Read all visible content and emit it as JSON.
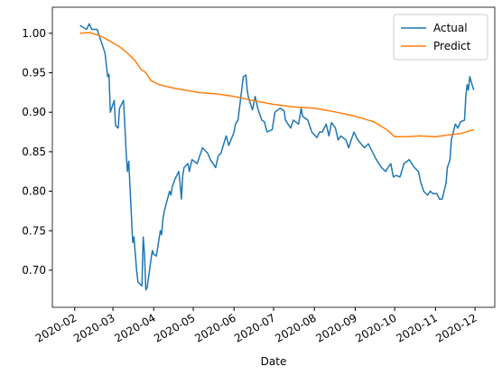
{
  "chart_data": {
    "type": "line",
    "xlabel": "Date",
    "xlim": [
      "2020-01-15",
      "2020-12-16"
    ],
    "xticks": [
      "2020-02",
      "2020-03",
      "2020-04",
      "2020-05",
      "2020-06",
      "2020-07",
      "2020-08",
      "2020-09",
      "2020-10",
      "2020-11",
      "2020-12"
    ],
    "ylim": [
      0.653,
      1.033
    ],
    "yticks": [
      {
        "value": 0.7,
        "label": "0.70"
      },
      {
        "value": 0.75,
        "label": "0.75"
      },
      {
        "value": 0.8,
        "label": "0.80"
      },
      {
        "value": 0.85,
        "label": "0.85"
      },
      {
        "value": 0.9,
        "label": "0.90"
      },
      {
        "value": 0.95,
        "label": "0.95"
      },
      {
        "value": 1.0,
        "label": "1.00"
      }
    ],
    "grid": false,
    "legend": "upper right",
    "series": [
      {
        "name": "Actual",
        "color": "#1f77b4",
        "x": [
          "2020-02-05",
          "2020-02-10",
          "2020-02-12",
          "2020-02-14",
          "2020-02-18",
          "2020-02-20",
          "2020-02-24",
          "2020-02-26",
          "2020-02-27",
          "2020-02-28",
          "2020-03-02",
          "2020-03-03",
          "2020-03-05",
          "2020-03-06",
          "2020-03-09",
          "2020-03-10",
          "2020-03-11",
          "2020-03-12",
          "2020-03-13",
          "2020-03-16",
          "2020-03-17",
          "2020-03-18",
          "2020-03-19",
          "2020-03-20",
          "2020-03-23",
          "2020-03-24",
          "2020-03-25",
          "2020-03-26",
          "2020-03-27",
          "2020-03-30",
          "2020-03-31",
          "2020-04-01",
          "2020-04-03",
          "2020-04-06",
          "2020-04-07",
          "2020-04-08",
          "2020-04-09",
          "2020-04-13",
          "2020-04-14",
          "2020-04-15",
          "2020-04-17",
          "2020-04-20",
          "2020-04-21",
          "2020-04-22",
          "2020-04-23",
          "2020-04-24",
          "2020-04-27",
          "2020-04-28",
          "2020-04-30",
          "2020-05-04",
          "2020-05-06",
          "2020-05-08",
          "2020-05-12",
          "2020-05-14",
          "2020-05-18",
          "2020-05-20",
          "2020-05-22",
          "2020-05-26",
          "2020-05-28",
          "2020-06-01",
          "2020-06-02",
          "2020-06-04",
          "2020-06-08",
          "2020-06-10",
          "2020-06-11",
          "2020-06-12",
          "2020-06-15",
          "2020-06-17",
          "2020-06-19",
          "2020-06-22",
          "2020-06-24",
          "2020-06-26",
          "2020-06-30",
          "2020-07-02",
          "2020-07-06",
          "2020-07-09",
          "2020-07-10",
          "2020-07-14",
          "2020-07-16",
          "2020-07-20",
          "2020-07-22",
          "2020-07-23",
          "2020-07-27",
          "2020-07-30",
          "2020-08-03",
          "2020-08-05",
          "2020-08-07",
          "2020-08-10",
          "2020-08-12",
          "2020-08-14",
          "2020-08-17",
          "2020-08-19",
          "2020-08-21",
          "2020-08-25",
          "2020-08-27",
          "2020-08-31",
          "2020-09-03",
          "2020-09-08",
          "2020-09-11",
          "2020-09-14",
          "2020-09-17",
          "2020-09-21",
          "2020-09-24",
          "2020-09-28",
          "2020-09-30",
          "2020-10-02",
          "2020-10-05",
          "2020-10-08",
          "2020-10-12",
          "2020-10-14",
          "2020-10-16",
          "2020-10-19",
          "2020-10-21",
          "2020-10-23",
          "2020-10-26",
          "2020-10-28",
          "2020-10-30",
          "2020-11-02",
          "2020-11-04",
          "2020-11-06",
          "2020-11-09",
          "2020-11-10",
          "2020-11-12",
          "2020-11-13",
          "2020-11-16",
          "2020-11-18",
          "2020-11-20",
          "2020-11-23",
          "2020-11-24",
          "2020-11-25",
          "2020-11-26",
          "2020-11-27",
          "2020-11-30"
        ],
        "values": [
          1.01,
          1.005,
          1.012,
          1.005,
          1.005,
          0.995,
          0.975,
          0.945,
          0.948,
          0.9,
          0.915,
          0.883,
          0.88,
          0.905,
          0.915,
          0.885,
          0.85,
          0.825,
          0.838,
          0.735,
          0.742,
          0.72,
          0.7,
          0.685,
          0.68,
          0.742,
          0.72,
          0.675,
          0.678,
          0.715,
          0.725,
          0.72,
          0.718,
          0.75,
          0.745,
          0.765,
          0.775,
          0.8,
          0.795,
          0.805,
          0.815,
          0.825,
          0.81,
          0.79,
          0.82,
          0.83,
          0.835,
          0.825,
          0.84,
          0.835,
          0.845,
          0.855,
          0.848,
          0.84,
          0.83,
          0.845,
          0.848,
          0.87,
          0.858,
          0.875,
          0.885,
          0.89,
          0.945,
          0.947,
          0.928,
          0.918,
          0.903,
          0.92,
          0.905,
          0.89,
          0.888,
          0.875,
          0.878,
          0.9,
          0.905,
          0.902,
          0.89,
          0.88,
          0.89,
          0.885,
          0.905,
          0.895,
          0.89,
          0.875,
          0.868,
          0.875,
          0.875,
          0.885,
          0.87,
          0.887,
          0.88,
          0.865,
          0.87,
          0.865,
          0.855,
          0.875,
          0.865,
          0.855,
          0.86,
          0.85,
          0.84,
          0.83,
          0.825,
          0.835,
          0.818,
          0.82,
          0.818,
          0.835,
          0.84,
          0.835,
          0.83,
          0.825,
          0.81,
          0.8,
          0.795,
          0.8,
          0.797,
          0.797,
          0.79,
          0.79,
          0.81,
          0.83,
          0.84,
          0.865,
          0.885,
          0.88,
          0.888,
          0.89,
          0.92,
          0.935,
          0.928,
          0.945,
          0.928
        ]
      },
      {
        "name": "Predict",
        "color": "#ff7f0e",
        "x": [
          "2020-02-05",
          "2020-02-12",
          "2020-02-20",
          "2020-02-28",
          "2020-03-06",
          "2020-03-12",
          "2020-03-18",
          "2020-03-22",
          "2020-03-26",
          "2020-03-30",
          "2020-04-05",
          "2020-04-15",
          "2020-04-25",
          "2020-05-05",
          "2020-05-20",
          "2020-06-01",
          "2020-06-15",
          "2020-07-01",
          "2020-07-15",
          "2020-08-01",
          "2020-08-15",
          "2020-09-01",
          "2020-09-15",
          "2020-09-25",
          "2020-10-01",
          "2020-10-10",
          "2020-10-20",
          "2020-11-01",
          "2020-11-10",
          "2020-11-20",
          "2020-11-30"
        ],
        "values": [
          1.0,
          1.001,
          0.997,
          0.99,
          0.983,
          0.975,
          0.965,
          0.955,
          0.95,
          0.94,
          0.935,
          0.931,
          0.928,
          0.925,
          0.923,
          0.92,
          0.915,
          0.91,
          0.907,
          0.905,
          0.901,
          0.895,
          0.888,
          0.878,
          0.869,
          0.869,
          0.87,
          0.869,
          0.871,
          0.873,
          0.878
        ]
      }
    ]
  }
}
